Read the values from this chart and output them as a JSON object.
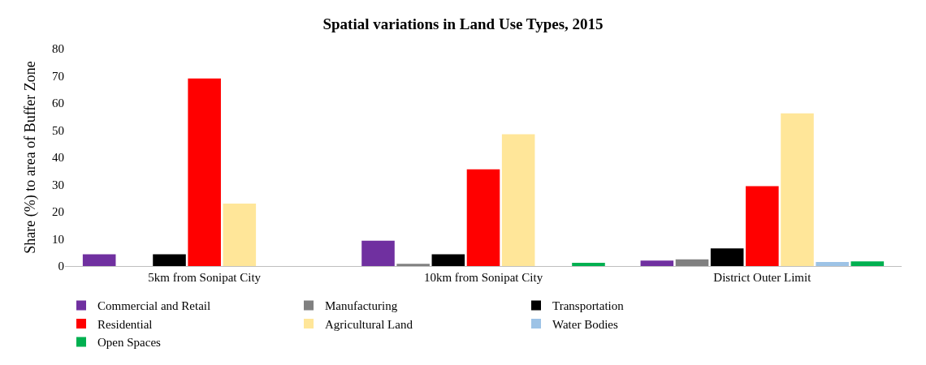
{
  "chart_data": {
    "type": "bar",
    "title": "Spatial variations in Land Use Types, 2015",
    "ylabel": "Share (%) to area of Buffer Zone",
    "categories": [
      "5km from Sonipat City",
      "10km from Sonipat City",
      "District Outer Limit"
    ],
    "series": [
      {
        "name": "Commercial and Retail",
        "color": "#7030a0",
        "values": [
          4.3,
          9.3,
          2.0
        ]
      },
      {
        "name": "Manufacturing",
        "color": "#808080",
        "values": [
          0,
          0.8,
          2.5
        ]
      },
      {
        "name": "Transportation",
        "color": "#000000",
        "values": [
          4.3,
          4.3,
          6.5
        ]
      },
      {
        "name": "Residential",
        "color": "#ff0000",
        "values": [
          69,
          35.6,
          29.4
        ]
      },
      {
        "name": "Agricultural Land",
        "color": "#ffe699",
        "values": [
          23,
          48.5,
          56.2
        ]
      },
      {
        "name": "Water Bodies",
        "color": "#9dc3e6",
        "values": [
          0,
          0,
          1.5
        ]
      },
      {
        "name": "Open Spaces",
        "color": "#00b050",
        "values": [
          0,
          1.2,
          1.7
        ]
      }
    ],
    "ylim": [
      0,
      80
    ],
    "yticks": [
      0,
      10,
      20,
      30,
      40,
      50,
      60,
      70,
      80
    ],
    "grid": false,
    "legend": "bottom"
  }
}
